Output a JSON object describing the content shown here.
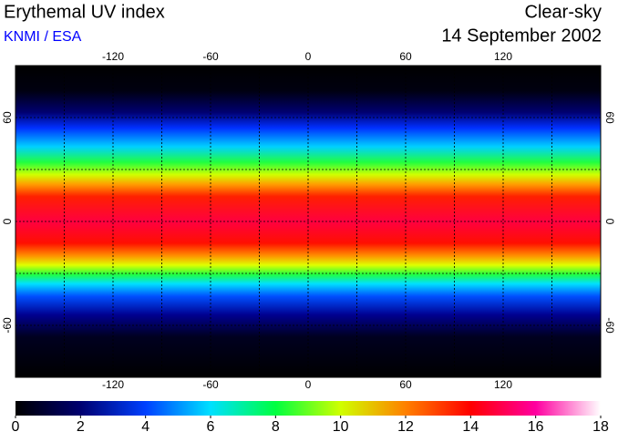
{
  "header": {
    "title": "Erythemal UV index",
    "source": "KNMI / ESA",
    "condition": "Clear-sky",
    "date": "14 September 2002"
  },
  "map": {
    "lonlim": [
      -180,
      180
    ],
    "latlim": [
      -90,
      90
    ],
    "lonticks": [
      -120,
      -60,
      0,
      60,
      120
    ],
    "latticks": [
      -60,
      0,
      60
    ]
  },
  "colorbar": {
    "lim": [
      0,
      18
    ],
    "ticks": [
      0,
      2,
      4,
      6,
      8,
      10,
      12,
      14,
      16,
      18
    ],
    "colors": [
      "#000000",
      "#000070",
      "#0040ff",
      "#00e0ff",
      "#00ff40",
      "#d0ff00",
      "#ff8000",
      "#ff0000",
      "#ff00a0",
      "#ffffff"
    ]
  }
}
